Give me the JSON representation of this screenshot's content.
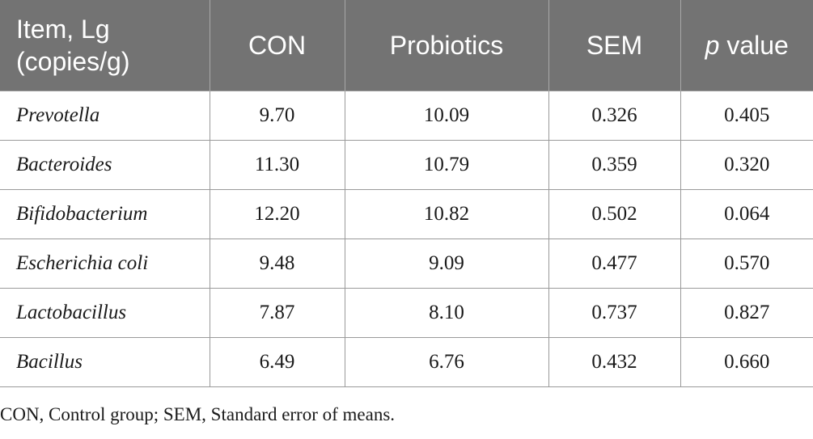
{
  "table": {
    "headers": {
      "item_line1": "Item, Lg",
      "item_line2": "(copies/g)",
      "con": "CON",
      "probiotics": "Probiotics",
      "sem": "SEM",
      "p_letter": "p",
      "p_rest": " value"
    },
    "rows": [
      {
        "item": "Prevotella",
        "con": "9.70",
        "probiotics": "10.09",
        "sem": "0.326",
        "p": "0.405"
      },
      {
        "item": "Bacteroides",
        "con": "11.30",
        "probiotics": "10.79",
        "sem": "0.359",
        "p": "0.320"
      },
      {
        "item": "Bifidobacterium",
        "con": "12.20",
        "probiotics": "10.82",
        "sem": "0.502",
        "p": "0.064"
      },
      {
        "item": "Escherichia coli",
        "con": "9.48",
        "probiotics": "9.09",
        "sem": "0.477",
        "p": "0.570"
      },
      {
        "item": "Lactobacillus",
        "con": "7.87",
        "probiotics": "8.10",
        "sem": "0.737",
        "p": "0.827"
      },
      {
        "item": "Bacillus",
        "con": "6.49",
        "probiotics": "6.76",
        "sem": "0.432",
        "p": "0.660"
      }
    ]
  },
  "footnote": "CON, Control group; SEM, Standard error of means."
}
